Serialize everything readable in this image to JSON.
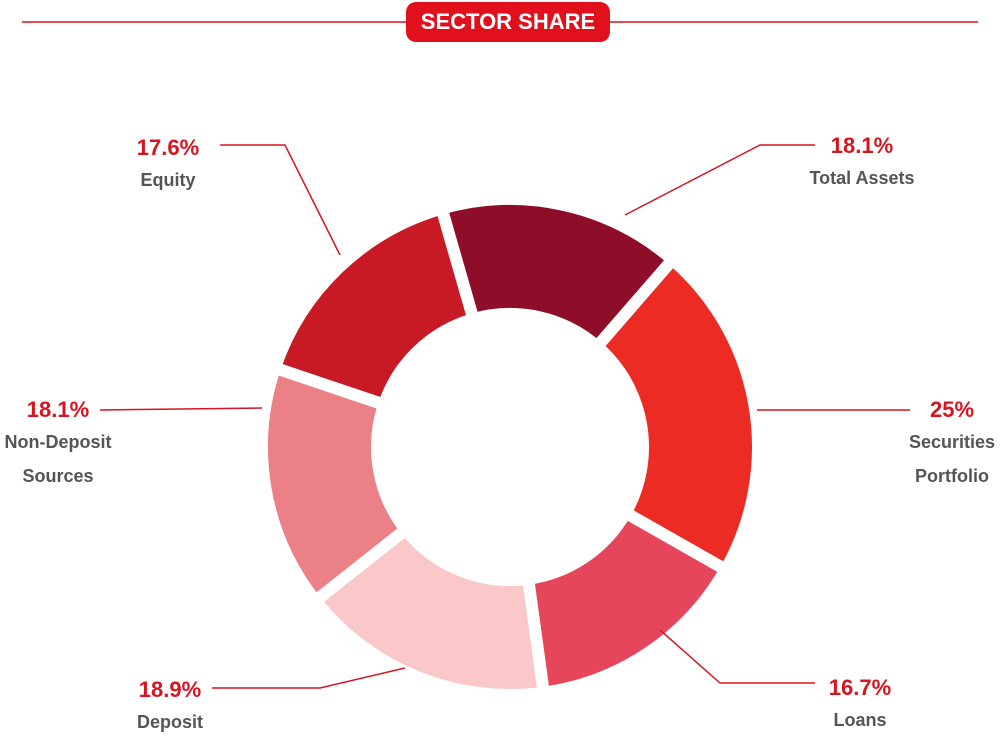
{
  "chart_data": {
    "type": "donut",
    "title": "SECTOR SHARE",
    "categories": [
      "Total Assets",
      "Securities Portfolio",
      "Loans",
      "Deposit",
      "Non-Deposit Sources",
      "Equity"
    ],
    "values": [
      18.1,
      25,
      16.7,
      18.9,
      18.1,
      17.6
    ],
    "value_labels": [
      "18.1%",
      "25%",
      "16.7%",
      "18.9%",
      "18.1%",
      "17.6%"
    ],
    "colors": [
      "#8e0e2a",
      "#ec2b24",
      "#e6465c",
      "#fac8c8",
      "#eb8087",
      "#c81a24"
    ]
  }
}
